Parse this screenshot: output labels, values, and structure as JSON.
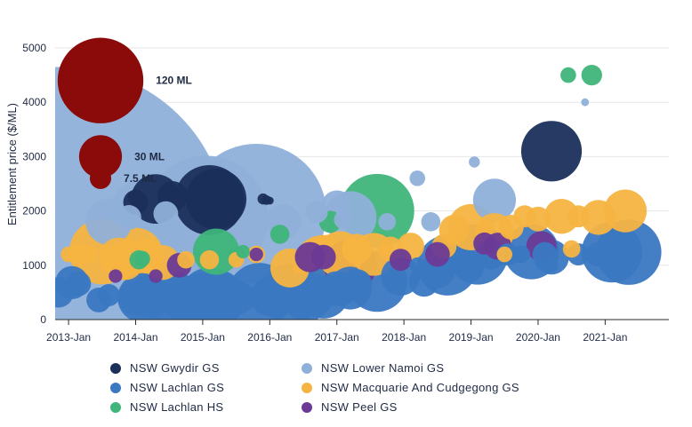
{
  "chart_data": {
    "type": "scatter",
    "title": "",
    "xlabel": "",
    "ylabel": "Entitlement price ($/ML)",
    "ylim": [
      0,
      5000
    ],
    "yticks": [
      0,
      1000,
      2000,
      3000,
      4000,
      5000
    ],
    "xticks": [
      "2013-Jan",
      "2014-Jan",
      "2015-Jan",
      "2016-Jan",
      "2017-Jan",
      "2018-Jan",
      "2019-Jan",
      "2020-Jan",
      "2021-Jan"
    ],
    "xlim": [
      2012.8,
      2021.95
    ],
    "grid": true,
    "legend_position": "bottom",
    "size_legend": {
      "color": "#8b0a0a",
      "items": [
        {
          "label": "120 ML",
          "ml": 120,
          "value": 4400
        },
        {
          "label": "30 ML",
          "ml": 30,
          "value": 3000
        },
        {
          "label": "7.5 ML",
          "ml": 7.5,
          "value": 2600
        }
      ]
    },
    "series": [
      {
        "name": "NSW Gwydir GS",
        "color": "#1b2f5b",
        "points": [
          [
            2014.0,
            2160,
            10
          ],
          [
            2014.0,
            2250,
            4
          ],
          [
            2014.3,
            2220,
            40
          ],
          [
            2014.55,
            2270,
            15
          ],
          [
            2015.1,
            2200,
            80
          ],
          [
            2015.2,
            2220,
            60
          ],
          [
            2015.9,
            2220,
            2
          ],
          [
            2015.95,
            2200,
            1.5
          ],
          [
            2016.0,
            2190,
            1
          ],
          [
            2020.2,
            3100,
            60
          ]
        ]
      },
      {
        "name": "NSW Lachlan GS",
        "color": "#3a78c2",
        "points": [
          [
            2012.85,
            500,
            15
          ],
          [
            2013.05,
            680,
            18
          ],
          [
            2013.15,
            660,
            10
          ],
          [
            2013.45,
            360,
            10
          ],
          [
            2013.6,
            450,
            8
          ],
          [
            2014.0,
            400,
            20
          ],
          [
            2014.1,
            400,
            40
          ],
          [
            2014.2,
            430,
            30
          ],
          [
            2014.5,
            420,
            50
          ],
          [
            2014.7,
            400,
            35
          ],
          [
            2015.0,
            400,
            40
          ],
          [
            2015.1,
            400,
            60
          ],
          [
            2015.2,
            390,
            55
          ],
          [
            2015.25,
            390,
            45
          ],
          [
            2015.5,
            410,
            20
          ],
          [
            2015.6,
            400,
            12
          ],
          [
            2015.85,
            440,
            70
          ],
          [
            2016.0,
            420,
            25
          ],
          [
            2016.3,
            470,
            60
          ],
          [
            2016.55,
            420,
            40
          ],
          [
            2016.65,
            450,
            30
          ],
          [
            2016.8,
            500,
            45
          ],
          [
            2017.0,
            570,
            20
          ],
          [
            2017.2,
            580,
            30
          ],
          [
            2017.1,
            520,
            12
          ],
          [
            2017.3,
            650,
            15
          ],
          [
            2017.6,
            700,
            60
          ],
          [
            2017.95,
            800,
            25
          ],
          [
            2018.3,
            700,
            15
          ],
          [
            2018.5,
            900,
            20
          ],
          [
            2018.65,
            1000,
            60
          ],
          [
            2018.95,
            980,
            10
          ],
          [
            2019.0,
            930,
            10
          ],
          [
            2019.1,
            1200,
            60
          ],
          [
            2019.3,
            1200,
            15
          ],
          [
            2019.55,
            1200,
            8
          ],
          [
            2019.75,
            1200,
            5
          ],
          [
            2019.9,
            1250,
            50
          ],
          [
            2020.2,
            1150,
            20
          ],
          [
            2020.1,
            1200,
            10
          ],
          [
            2020.6,
            1200,
            8
          ],
          [
            2020.9,
            1200,
            10
          ],
          [
            2021.1,
            1240,
            60
          ],
          [
            2021.35,
            1240,
            70
          ],
          [
            2018.2,
            1000,
            4
          ],
          [
            2020.2,
            1000,
            3
          ]
        ]
      },
      {
        "name": "NSW Lachlan HS",
        "color": "#3fb57a",
        "points": [
          [
            2014.05,
            1100,
            6
          ],
          [
            2014.1,
            1120,
            4
          ],
          [
            2015.2,
            1250,
            35
          ],
          [
            2015.5,
            1200,
            4
          ],
          [
            2015.6,
            1250,
            3
          ],
          [
            2016.15,
            1570,
            6
          ],
          [
            2016.9,
            1800,
            8
          ],
          [
            2017.6,
            2000,
            90
          ],
          [
            2020.45,
            4500,
            4
          ],
          [
            2020.8,
            4500,
            7
          ]
        ]
      },
      {
        "name": "NSW Lower Namoi GS",
        "color": "#8fb0d9",
        "points": [
          [
            2012.9,
            1600,
            1800
          ],
          [
            2013.9,
            1880,
            10
          ],
          [
            2013.6,
            1800,
            35
          ],
          [
            2014.15,
            1860,
            100
          ],
          [
            2014.45,
            1950,
            10
          ],
          [
            2015.05,
            1880,
            250
          ],
          [
            2015.8,
            1950,
            320
          ],
          [
            2016.2,
            1800,
            20
          ],
          [
            2016.7,
            1980,
            8
          ],
          [
            2017.0,
            2100,
            15
          ],
          [
            2017.2,
            1880,
            45
          ],
          [
            2017.1,
            1840,
            6
          ],
          [
            2017.75,
            1800,
            5
          ],
          [
            2018.2,
            2600,
            4
          ],
          [
            2018.4,
            1800,
            6
          ],
          [
            2019.05,
            2900,
            2
          ],
          [
            2019.35,
            2200,
            30
          ],
          [
            2020.7,
            4000,
            1
          ]
        ]
      },
      {
        "name": "NSW Macquarie And Cudgegong GS",
        "color": "#f5b441",
        "points": [
          [
            2013.0,
            1200,
            4
          ],
          [
            2013.15,
            1200,
            8
          ],
          [
            2013.3,
            1200,
            6
          ],
          [
            2013.5,
            1250,
            70
          ],
          [
            2013.75,
            1150,
            25
          ],
          [
            2013.85,
            1050,
            20
          ],
          [
            2014.0,
            1180,
            50
          ],
          [
            2014.15,
            1180,
            20
          ],
          [
            2014.4,
            1050,
            20
          ],
          [
            2014.75,
            1100,
            5
          ],
          [
            2015.1,
            1100,
            6
          ],
          [
            2015.5,
            1100,
            4
          ],
          [
            2015.8,
            1200,
            5
          ],
          [
            2016.3,
            950,
            25
          ],
          [
            2016.8,
            1000,
            60
          ],
          [
            2016.9,
            920,
            80
          ],
          [
            2017.05,
            1200,
            35
          ],
          [
            2017.3,
            1300,
            15
          ],
          [
            2017.55,
            1200,
            30
          ],
          [
            2017.8,
            1300,
            10
          ],
          [
            2018.1,
            1350,
            12
          ],
          [
            2018.6,
            1350,
            10
          ],
          [
            2018.75,
            1650,
            15
          ],
          [
            2019.0,
            1700,
            35
          ],
          [
            2019.35,
            1600,
            25
          ],
          [
            2019.6,
            1700,
            10
          ],
          [
            2019.8,
            1900,
            8
          ],
          [
            2020.0,
            1850,
            10
          ],
          [
            2020.35,
            1900,
            20
          ],
          [
            2020.6,
            1900,
            8
          ],
          [
            2020.9,
            1880,
            20
          ],
          [
            2021.3,
            2000,
            30
          ],
          [
            2019.5,
            1200,
            4
          ],
          [
            2020.5,
            1300,
            5
          ]
        ]
      },
      {
        "name": "NSW Peel GS",
        "color": "#6b3a96",
        "points": [
          [
            2013.7,
            800,
            3
          ],
          [
            2014.3,
            800,
            3
          ],
          [
            2014.65,
            1000,
            10
          ],
          [
            2015.8,
            1200,
            3
          ],
          [
            2016.6,
            1150,
            15
          ],
          [
            2016.8,
            1150,
            10
          ],
          [
            2017.2,
            1000,
            45
          ],
          [
            2017.95,
            1100,
            8
          ],
          [
            2018.5,
            1200,
            10
          ],
          [
            2019.2,
            1400,
            8
          ],
          [
            2019.4,
            1350,
            12
          ],
          [
            2020.05,
            1350,
            15
          ]
        ]
      }
    ]
  }
}
